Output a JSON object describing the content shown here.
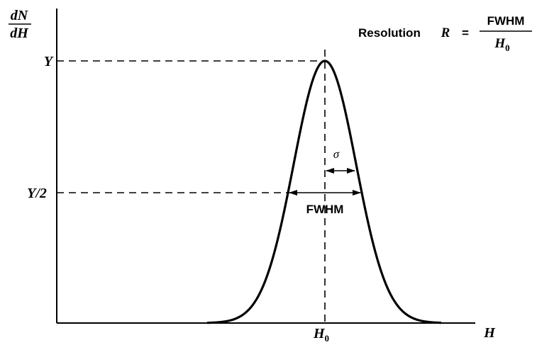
{
  "y_axis": {
    "numerator": "dN",
    "denominator": "dH",
    "tick_peak": "Y",
    "tick_half": "Y/2"
  },
  "x_axis": {
    "label": "H",
    "tick_center_base": "H",
    "tick_center_sub": "0"
  },
  "formula": {
    "prefix": "Resolution",
    "symbol": "R",
    "equals": "=",
    "numerator": "FWHM",
    "denominator_base": "H",
    "denominator_sub": "0"
  },
  "annotations": {
    "sigma": "σ",
    "fwhm": "FWHM"
  },
  "curve": {
    "type": "gaussian",
    "peak_fraction": 1.0,
    "half_max_fraction": 0.5,
    "half_width_at_half_max_over_sigma": 1.0
  },
  "colors": {
    "ink": "#000000",
    "background": "#ffffff"
  }
}
